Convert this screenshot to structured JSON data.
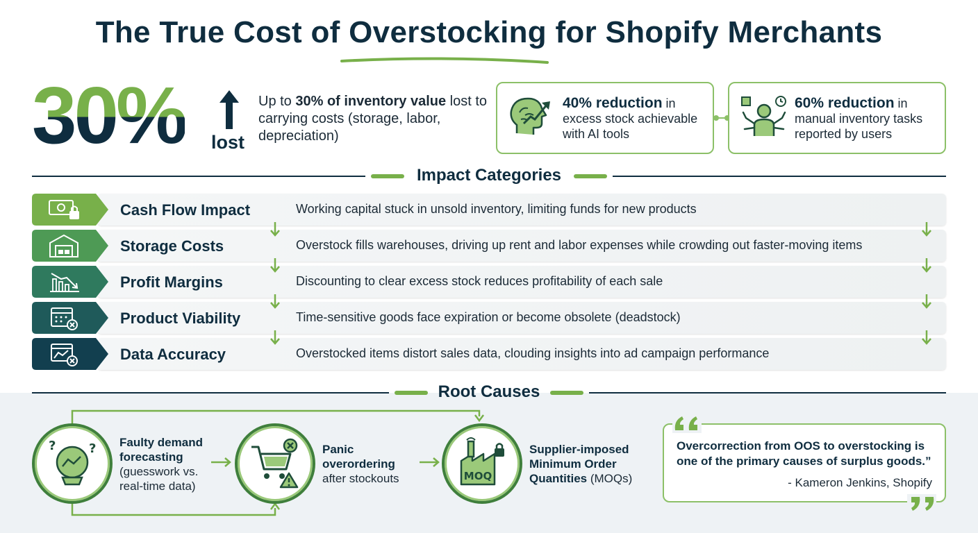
{
  "title": "The True Cost of Overstocking for Shopify Merchants",
  "hero_stat": {
    "value": "30%",
    "suffix": "lost",
    "text_bold": "30% of inventory value",
    "text_prefix": "Up to ",
    "text_rest": "lost to carrying costs (storage, labor, depreciation)"
  },
  "cards": [
    {
      "bold": "40% reduction",
      "rest": " in excess stock achievable with AI tools",
      "icon": "brain-growth-icon"
    },
    {
      "bold": "60% reduction",
      "rest": " in manual inventory tasks reported by users",
      "icon": "worker-tasks-icon"
    }
  ],
  "impact": {
    "section_title": "Impact Categories",
    "rows": [
      {
        "label": "Cash Flow Impact",
        "desc": "Working capital stuck in unsold inventory, limiting funds for new products",
        "icon": "cash-lock-icon",
        "color": "#78b04a"
      },
      {
        "label": "Storage Costs",
        "desc": "Overstock fills warehouses, driving up rent and labor expenses while crowding out faster-moving items",
        "icon": "warehouse-icon",
        "color": "#4e9a55"
      },
      {
        "label": "Profit Margins",
        "desc": "Discounting to clear excess stock reduces profitability of each sale",
        "icon": "declining-chart-icon",
        "color": "#2f7a5e"
      },
      {
        "label": "Product Viability",
        "desc": "Time-sensitive goods face expiration or become obsolete (deadstock)",
        "icon": "calendar-expired-icon",
        "color": "#1f5a5a"
      },
      {
        "label": "Data Accuracy",
        "desc": "Overstocked items distort sales data, clouding insights into ad campaign performance",
        "icon": "distorted-data-icon",
        "color": "#123f4f"
      }
    ]
  },
  "root_causes": {
    "section_title": "Root Causes",
    "causes": [
      {
        "bold": "Faulty demand forecasting",
        "rest": " (guesswork vs. real-time data)",
        "icon": "crystal-ball-icon"
      },
      {
        "bold": "Panic overordering",
        "rest": " after stockouts",
        "icon": "cart-warning-icon"
      },
      {
        "bold": "Supplier-imposed Minimum Order Quantities",
        "rest": " (MOQs)",
        "icon": "factory-moq-icon",
        "icon_text": "MOQ"
      }
    ],
    "quote": {
      "text": "Overcorrection from OOS to overstocking is one of the primary causes of surplus goods.”",
      "author": "- Kameron Jenkins, Shopify"
    }
  }
}
